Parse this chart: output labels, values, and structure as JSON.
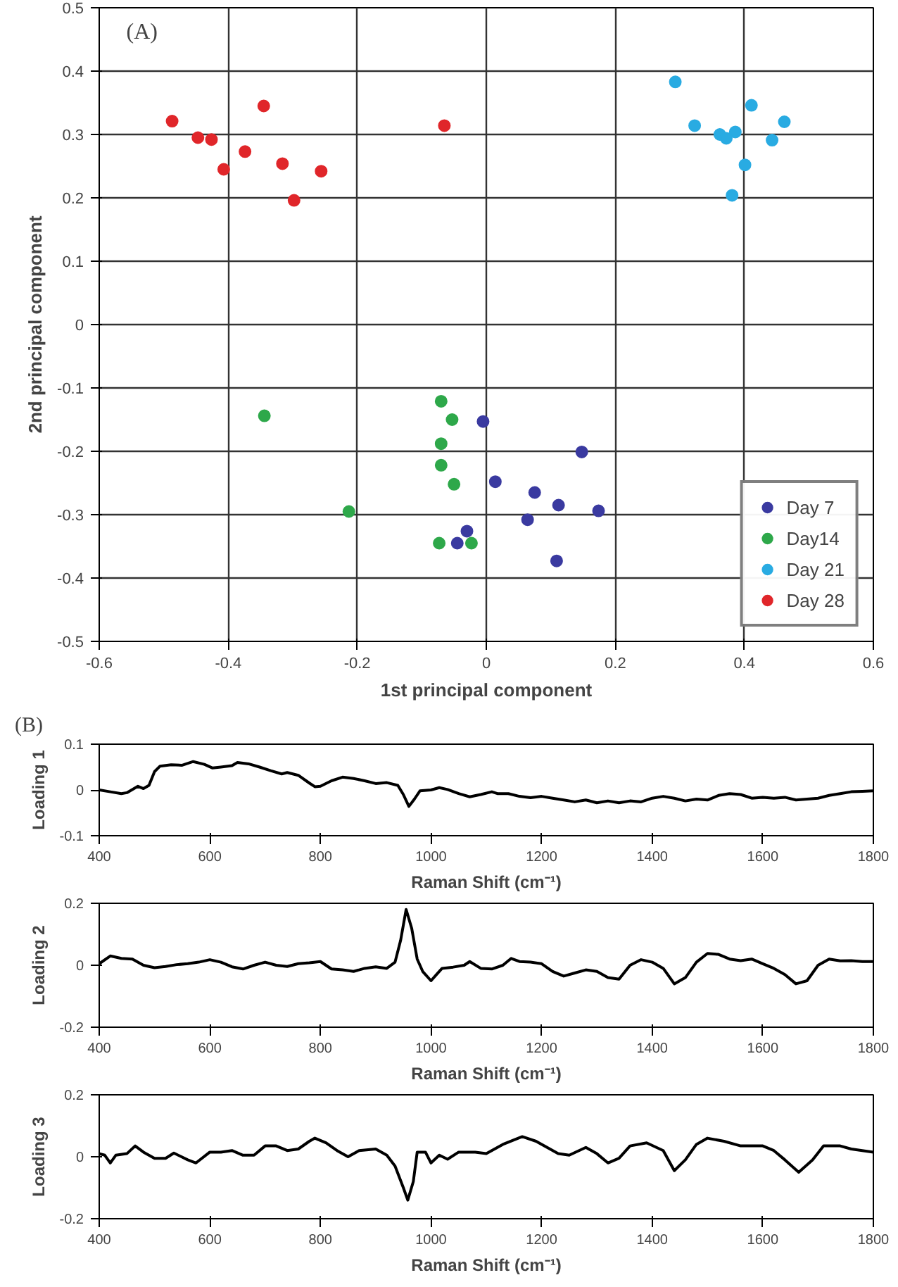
{
  "chart_data": [
    {
      "type": "scatter",
      "xlabel": "1st principal component",
      "ylabel": "2nd principal component",
      "xlim": [
        -0.6,
        0.6
      ],
      "ylim": [
        -0.5,
        0.5
      ],
      "xticks": [
        -0.6,
        -0.4,
        -0.2,
        0,
        0.2,
        0.4,
        0.6
      ],
      "yticks": [
        -0.5,
        -0.4,
        -0.3,
        -0.2,
        -0.1,
        0,
        0.1,
        0.2,
        0.3,
        0.4,
        0.5
      ],
      "grid": true,
      "legend": "bottom right",
      "marker": "circle",
      "annotations": [
        "(A)"
      ],
      "series": [
        {
          "name": "Day 7",
          "color": "#3a3aa0",
          "x": [
            -0.005,
            0.148,
            0.014,
            0.075,
            0.112,
            0.174,
            0.064,
            -0.03,
            -0.045,
            0.109
          ],
          "values": [
            -0.153,
            -0.201,
            -0.248,
            -0.265,
            -0.285,
            -0.294,
            -0.308,
            -0.326,
            -0.345,
            -0.373
          ]
        },
        {
          "name": "Day14",
          "color": "#2ea84a",
          "x": [
            -0.344,
            -0.213,
            -0.07,
            -0.053,
            -0.07,
            -0.07,
            -0.05,
            -0.073,
            -0.023
          ],
          "values": [
            -0.144,
            -0.295,
            -0.121,
            -0.15,
            -0.188,
            -0.222,
            -0.252,
            -0.345,
            -0.345
          ]
        },
        {
          "name": "Day 21",
          "color": "#29abe2",
          "x": [
            0.293,
            0.323,
            0.362,
            0.372,
            0.386,
            0.411,
            0.462,
            0.443,
            0.401,
            0.381
          ],
          "values": [
            0.383,
            0.314,
            0.3,
            0.294,
            0.304,
            0.346,
            0.32,
            0.291,
            0.252,
            0.204
          ]
        },
        {
          "name": "Day 28",
          "color": "#e0262a",
          "x": [
            -0.487,
            -0.447,
            -0.426,
            -0.407,
            -0.374,
            -0.345,
            -0.316,
            -0.298,
            -0.256,
            -0.065
          ],
          "values": [
            0.321,
            0.295,
            0.292,
            0.245,
            0.273,
            0.345,
            0.254,
            0.196,
            0.242,
            0.314
          ]
        }
      ]
    },
    {
      "type": "line",
      "xlabel": "Raman Shift (cm⁻¹)",
      "ylabel": "Loading 1",
      "xlim": [
        400,
        1800
      ],
      "ylim": [
        -0.1,
        0.1
      ],
      "xticks": [
        400,
        600,
        800,
        1000,
        1200,
        1400,
        1600,
        1800
      ],
      "yticks": [
        -0.1,
        0,
        0.1
      ],
      "annotations": [
        "(B)"
      ],
      "x": [
        400,
        420,
        440,
        450,
        470,
        480,
        490,
        500,
        510,
        530,
        550,
        570,
        590,
        605,
        620,
        640,
        650,
        670,
        690,
        710,
        730,
        740,
        760,
        780,
        790,
        800,
        820,
        840,
        860,
        880,
        900,
        920,
        940,
        950,
        960,
        970,
        980,
        1000,
        1015,
        1030,
        1050,
        1070,
        1090,
        1110,
        1120,
        1140,
        1160,
        1180,
        1200,
        1220,
        1240,
        1260,
        1280,
        1300,
        1320,
        1340,
        1360,
        1380,
        1400,
        1420,
        1440,
        1460,
        1480,
        1500,
        1520,
        1540,
        1560,
        1580,
        1600,
        1620,
        1640,
        1660,
        1680,
        1700,
        1720,
        1740,
        1760,
        1780,
        1800
      ],
      "series": [
        {
          "color": "#000000",
          "values": [
            0,
            -0.004,
            -0.008,
            -0.006,
            0.008,
            0.003,
            0.01,
            0.04,
            0.052,
            0.055,
            0.054,
            0.062,
            0.056,
            0.048,
            0.05,
            0.053,
            0.06,
            0.057,
            0.05,
            0.042,
            0.035,
            0.038,
            0.032,
            0.015,
            0.007,
            0.008,
            0.02,
            0.028,
            0.025,
            0.02,
            0.014,
            0.016,
            0.01,
            -0.01,
            -0.036,
            -0.02,
            -0.002,
            0,
            0.005,
            0.001,
            -0.008,
            -0.015,
            -0.01,
            -0.004,
            -0.008,
            -0.008,
            -0.014,
            -0.017,
            -0.014,
            -0.018,
            -0.022,
            -0.026,
            -0.022,
            -0.028,
            -0.024,
            -0.028,
            -0.024,
            -0.026,
            -0.018,
            -0.014,
            -0.018,
            -0.024,
            -0.02,
            -0.022,
            -0.012,
            -0.008,
            -0.01,
            -0.018,
            -0.016,
            -0.018,
            -0.016,
            -0.022,
            -0.02,
            -0.018,
            -0.012,
            -0.008,
            -0.004,
            -0.003,
            -0.002
          ]
        }
      ]
    },
    {
      "type": "line",
      "xlabel": "Raman Shift (cm⁻¹)",
      "ylabel": "Loading 2",
      "xlim": [
        400,
        1800
      ],
      "ylim": [
        -0.2,
        0.2
      ],
      "xticks": [
        400,
        600,
        800,
        1000,
        1200,
        1400,
        1600,
        1800
      ],
      "yticks": [
        -0.2,
        0,
        0.2
      ],
      "x": [
        400,
        420,
        440,
        460,
        480,
        500,
        520,
        540,
        560,
        580,
        600,
        620,
        640,
        660,
        680,
        700,
        720,
        740,
        760,
        780,
        800,
        820,
        840,
        860,
        880,
        900,
        920,
        935,
        945,
        955,
        965,
        975,
        985,
        1000,
        1010,
        1020,
        1040,
        1060,
        1070,
        1090,
        1110,
        1130,
        1145,
        1160,
        1180,
        1200,
        1220,
        1240,
        1260,
        1280,
        1300,
        1320,
        1340,
        1360,
        1380,
        1400,
        1420,
        1440,
        1460,
        1480,
        1500,
        1520,
        1540,
        1560,
        1580,
        1600,
        1620,
        1640,
        1660,
        1680,
        1700,
        1720,
        1740,
        1760,
        1780,
        1800
      ],
      "series": [
        {
          "color": "#000000",
          "values": [
            0.005,
            0.03,
            0.022,
            0.02,
            0,
            -0.008,
            -0.004,
            0.002,
            0.005,
            0.01,
            0.018,
            0.01,
            -0.005,
            -0.012,
            0,
            0.01,
            0,
            -0.004,
            0.005,
            0.008,
            0.012,
            -0.012,
            -0.015,
            -0.02,
            -0.01,
            -0.005,
            -0.01,
            0.01,
            0.08,
            0.18,
            0.12,
            0.02,
            -0.02,
            -0.05,
            -0.03,
            -0.01,
            -0.006,
            0,
            0.012,
            -0.01,
            -0.012,
            0,
            0.022,
            0.012,
            0.01,
            0.005,
            -0.02,
            -0.035,
            -0.025,
            -0.015,
            -0.02,
            -0.04,
            -0.045,
            0,
            0.018,
            0.01,
            -0.01,
            -0.06,
            -0.04,
            0.01,
            0.038,
            0.035,
            0.02,
            0.015,
            0.02,
            0.005,
            -0.01,
            -0.03,
            -0.06,
            -0.05,
            0,
            0.02,
            0.014,
            0.015,
            0.012,
            0.012
          ]
        }
      ]
    },
    {
      "type": "line",
      "xlabel": "Raman Shift (cm⁻¹)",
      "ylabel": "Loading 3",
      "xlim": [
        400,
        1800
      ],
      "ylim": [
        -0.2,
        0.2
      ],
      "xticks": [
        400,
        600,
        800,
        1000,
        1200,
        1400,
        1600,
        1800
      ],
      "yticks": [
        -0.2,
        0,
        0.2
      ],
      "x": [
        400,
        410,
        420,
        430,
        450,
        465,
        480,
        500,
        520,
        535,
        560,
        575,
        600,
        620,
        640,
        660,
        680,
        700,
        720,
        740,
        760,
        780,
        790,
        810,
        830,
        850,
        870,
        900,
        920,
        935,
        950,
        958,
        968,
        975,
        990,
        1000,
        1015,
        1030,
        1050,
        1080,
        1100,
        1130,
        1165,
        1190,
        1210,
        1230,
        1250,
        1280,
        1300,
        1320,
        1340,
        1360,
        1390,
        1420,
        1440,
        1460,
        1480,
        1500,
        1530,
        1560,
        1600,
        1620,
        1640,
        1665,
        1690,
        1710,
        1740,
        1760,
        1800
      ],
      "series": [
        {
          "color": "#000000",
          "values": [
            0.01,
            0.005,
            -0.02,
            0.005,
            0.01,
            0.035,
            0.015,
            -0.005,
            -0.005,
            0.012,
            -0.01,
            -0.02,
            0.015,
            0.015,
            0.02,
            0.005,
            0.005,
            0.035,
            0.035,
            0.02,
            0.025,
            0.05,
            0.06,
            0.045,
            0.02,
            0,
            0.02,
            0.025,
            0.005,
            -0.03,
            -0.1,
            -0.14,
            -0.08,
            0.015,
            0.015,
            -0.02,
            0.005,
            -0.008,
            0.015,
            0.015,
            0.01,
            0.04,
            0.065,
            0.05,
            0.03,
            0.01,
            0.005,
            0.03,
            0.01,
            -0.02,
            -0.005,
            0.035,
            0.045,
            0.02,
            -0.045,
            -0.01,
            0.04,
            0.06,
            0.05,
            0.035,
            0.035,
            0.02,
            -0.01,
            -0.05,
            -0.01,
            0.035,
            0.035,
            0.025,
            0.015
          ]
        }
      ]
    }
  ]
}
